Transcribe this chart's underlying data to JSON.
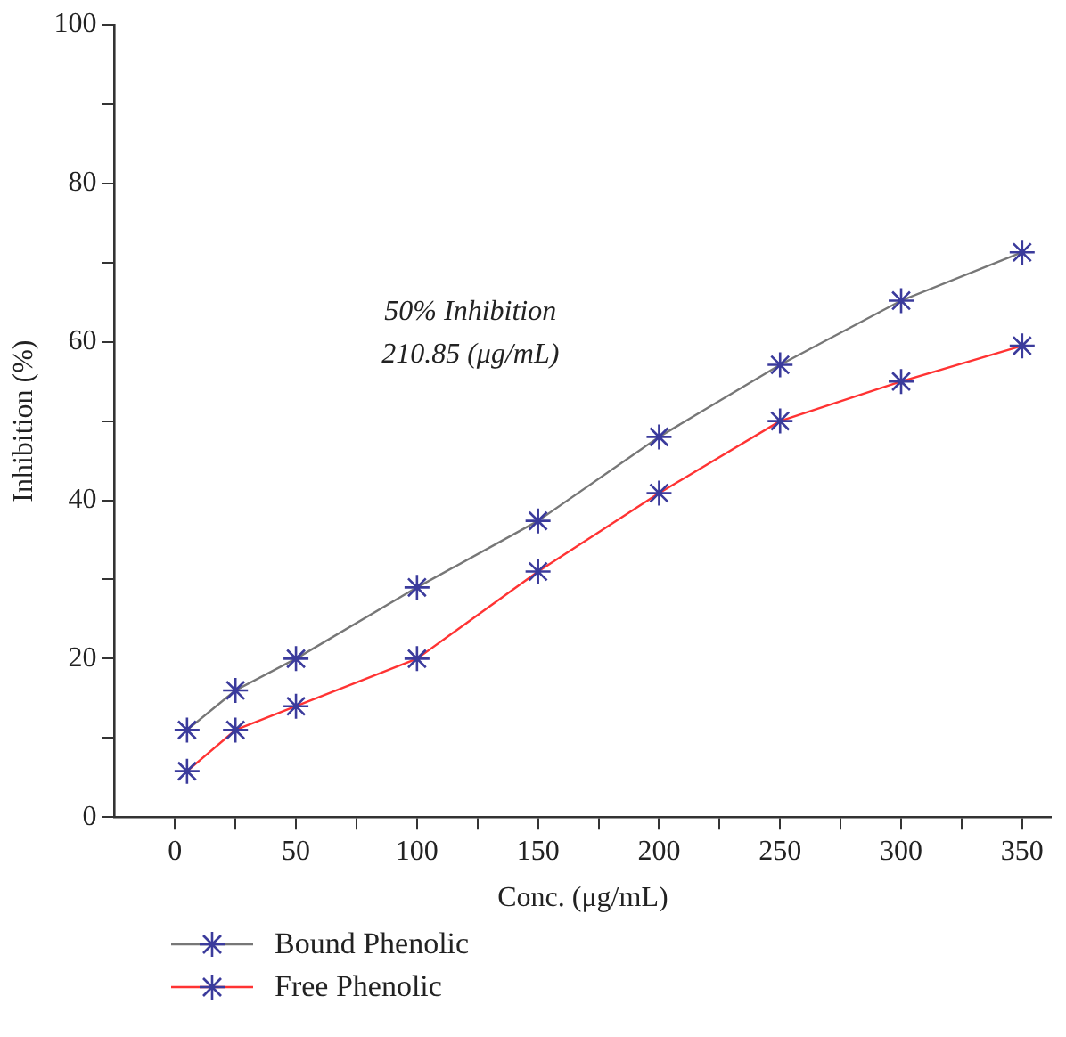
{
  "chart_data": {
    "type": "line",
    "xlabel": "Conc. (μg/mL)",
    "ylabel": "Inhibition (%)",
    "annotations": [
      "50% Inhibition\n210.85 (μg/mL)"
    ],
    "x": [
      5,
      25,
      50,
      100,
      150,
      200,
      250,
      300,
      350
    ],
    "series": [
      {
        "name": "Bound Phenolic",
        "color": "#777777",
        "values": [
          11,
          16,
          20,
          29,
          37.4,
          48,
          57.1,
          65.2,
          71.3
        ]
      },
      {
        "name": "Free Phenolic",
        "color": "#ff3333",
        "values": [
          5.8,
          11,
          14,
          20,
          31,
          40.9,
          50,
          55,
          59.5
        ]
      }
    ],
    "xlim": [
      -25,
      362
    ],
    "xticks": [
      0,
      {
        "value": 25,
        "label": null
      },
      50,
      {
        "value": 75,
        "label": null
      },
      100,
      {
        "value": 125,
        "label": null
      },
      150,
      {
        "value": 175,
        "label": null
      },
      200,
      {
        "value": 225,
        "label": null
      },
      250,
      {
        "value": 275,
        "label": null
      },
      300,
      {
        "value": 325,
        "label": null
      },
      350
    ],
    "ylim": [
      0,
      100
    ],
    "yticks": [
      0,
      {
        "value": 10,
        "label": null
      },
      20,
      {
        "value": 30,
        "label": null
      },
      40,
      {
        "value": 50,
        "label": null
      },
      60,
      {
        "value": 70,
        "label": null
      },
      80,
      {
        "value": 90,
        "label": null
      },
      100
    ],
    "grid": false,
    "legend": "bottom left",
    "marker": "cross",
    "line_style": "solid"
  }
}
